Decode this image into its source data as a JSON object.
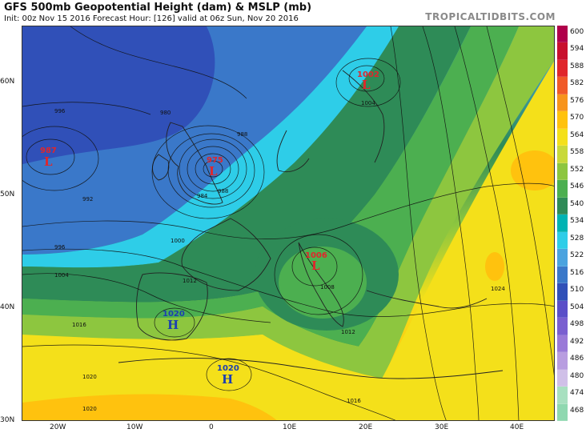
{
  "header": {
    "title": "GFS 500mb Geopotential Height (dam) & MSLP (mb)",
    "subtitle": "Init: 00z Nov 15 2016   Forecast Hour: [126]   valid at 06z Sun, Nov 20 2016",
    "brand": "TROPICALTIDBITS.COM"
  },
  "axes": {
    "latitudes": [
      "60N",
      "50N",
      "40N",
      "30N"
    ],
    "longitudes": [
      "20W",
      "10W",
      "0",
      "10E",
      "20E",
      "30E",
      "40E"
    ]
  },
  "scale": {
    "values": [
      "600",
      "594",
      "588",
      "582",
      "576",
      "570",
      "564",
      "558",
      "552",
      "546",
      "540",
      "534",
      "528",
      "522",
      "516",
      "510",
      "504",
      "498",
      "492",
      "486",
      "480",
      "474",
      "468"
    ],
    "colors": [
      "#b0004a",
      "#c8102e",
      "#e0262b",
      "#f05a28",
      "#f7941d",
      "#ffc20e",
      "#f4e01a",
      "#c8d93a",
      "#8dc63f",
      "#4caf50",
      "#2e8b57",
      "#00b3b3",
      "#2ecde8",
      "#4aa3df",
      "#3a78c9",
      "#3050b8",
      "#5a4fc8",
      "#7a5fd0",
      "#9a7ad8",
      "#b89de0",
      "#d0c0e8",
      "#a8e0c0",
      "#8fd8b0"
    ]
  },
  "pressure_centers": [
    {
      "type": "L",
      "value": "987"
    },
    {
      "type": "L",
      "value": "975"
    },
    {
      "type": "L",
      "value": "1002"
    },
    {
      "type": "L",
      "value": "1006"
    },
    {
      "type": "H",
      "value": "1020"
    },
    {
      "type": "H",
      "value": "1020"
    }
  ],
  "isobar_labels": [
    "996",
    "988",
    "992",
    "996",
    "1000",
    "1004",
    "1012",
    "1016",
    "1020",
    "1020",
    "1008",
    "1012",
    "1016",
    "1024",
    "1004",
    "988",
    "984",
    "980"
  ]
}
